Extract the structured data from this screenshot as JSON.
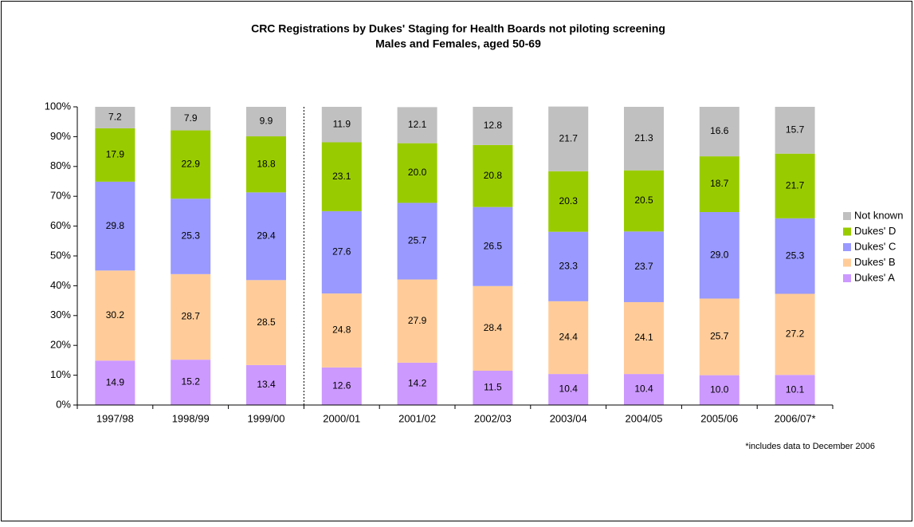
{
  "chart_data": {
    "type": "stacked_bar",
    "title": "CRC Registrations by Dukes' Staging for Health Boards not piloting screening",
    "subtitle": "Males and Females, aged 50-69",
    "annotation": "*includes data to December 2006",
    "categories": [
      "1997/98",
      "1998/99",
      "1999/00",
      "2000/01",
      "2001/02",
      "2002/03",
      "2003/04",
      "2004/05",
      "2005/06",
      "2006/07*"
    ],
    "series": [
      {
        "name": "Dukes' A",
        "color": "#cc99ff",
        "values": [
          14.9,
          15.2,
          13.4,
          12.6,
          14.2,
          11.5,
          10.4,
          10.4,
          10.0,
          10.1
        ],
        "value_labels": [
          "14.9",
          "15.2",
          "13.4",
          "12.6",
          "14.2",
          "11.5",
          "10.4",
          "10.4",
          "10.0",
          "10.1"
        ]
      },
      {
        "name": "Dukes' B",
        "color": "#ffcc99",
        "values": [
          30.2,
          28.7,
          28.5,
          24.8,
          27.9,
          28.4,
          24.4,
          24.1,
          25.7,
          27.2
        ],
        "value_labels": [
          "30.2",
          "28.7",
          "28.5",
          "24.8",
          "27.9",
          "28.4",
          "24.4",
          "24.1",
          "25.7",
          "27.2"
        ]
      },
      {
        "name": "Dukes' C",
        "color": "#9999ff",
        "values": [
          29.8,
          25.3,
          29.4,
          27.6,
          25.7,
          26.5,
          23.3,
          23.7,
          29.0,
          25.3
        ],
        "value_labels": [
          "29.8",
          "25.3",
          "29.4",
          "27.6",
          "25.7",
          "26.5",
          "23.3",
          "23.7",
          "29.0",
          "25.3"
        ]
      },
      {
        "name": "Dukes' D",
        "color": "#99cc00",
        "values": [
          17.9,
          22.9,
          18.8,
          23.1,
          20.0,
          20.8,
          20.3,
          20.5,
          18.7,
          21.7
        ],
        "value_labels": [
          "17.9",
          "22.9",
          "18.8",
          "23.1",
          "20.0",
          "20.8",
          "20.3",
          "20.5",
          "18.7",
          "21.7"
        ]
      },
      {
        "name": "Not known",
        "color": "#c0c0c0",
        "values": [
          7.2,
          7.9,
          9.9,
          11.9,
          12.1,
          12.8,
          21.7,
          21.3,
          16.6,
          15.7
        ],
        "value_labels": [
          "7.2",
          "7.9",
          "9.9",
          "11.9",
          "12.1",
          "12.8",
          "21.7",
          "21.3",
          "16.6",
          "15.7"
        ]
      }
    ],
    "ylim": [
      0,
      100
    ],
    "yticks": [
      {
        "value": 0,
        "label": "0%"
      },
      {
        "value": 10,
        "label": "10%"
      },
      {
        "value": 20,
        "label": "20%"
      },
      {
        "value": 30,
        "label": "30%"
      },
      {
        "value": 40,
        "label": "40%"
      },
      {
        "value": 50,
        "label": "50%"
      },
      {
        "value": 60,
        "label": "60%"
      },
      {
        "value": 70,
        "label": "70%"
      },
      {
        "value": 80,
        "label": "80%"
      },
      {
        "value": 90,
        "label": "90%"
      },
      {
        "value": 100,
        "label": "100%"
      }
    ],
    "grid": false,
    "legend": "right"
  }
}
